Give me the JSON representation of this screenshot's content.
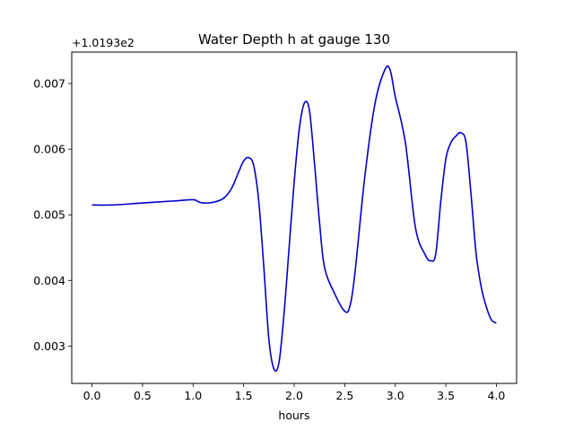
{
  "chart_data": {
    "type": "line",
    "title": "Water Depth h at gauge 130",
    "xlabel": "hours",
    "ylabel": "",
    "offset_label": "+1.0193e2",
    "xlim": [
      -0.2,
      4.2
    ],
    "ylim": [
      0.00243,
      0.00748
    ],
    "x_ticks": [
      0.0,
      0.5,
      1.0,
      1.5,
      2.0,
      2.5,
      3.0,
      3.5,
      4.0
    ],
    "x_tick_labels": [
      "0.0",
      "0.5",
      "1.0",
      "1.5",
      "2.0",
      "2.5",
      "3.0",
      "3.5",
      "4.0"
    ],
    "y_ticks": [
      0.003,
      0.004,
      0.005,
      0.006,
      0.007
    ],
    "y_tick_labels": [
      "0.003",
      "0.004",
      "0.005",
      "0.006",
      "0.007"
    ],
    "grid": false,
    "line_color": "#0000cc",
    "series": [
      {
        "x": [
          0.0,
          0.2,
          0.5,
          0.8,
          1.0,
          1.05,
          1.1,
          1.2,
          1.3,
          1.38,
          1.45,
          1.5,
          1.55,
          1.6,
          1.65,
          1.7,
          1.75,
          1.8,
          1.85,
          1.9,
          1.95,
          2.0,
          2.05,
          2.1,
          2.15,
          2.2,
          2.25,
          2.3,
          2.4,
          2.5,
          2.55,
          2.6,
          2.7,
          2.8,
          2.9,
          2.95,
          3.0,
          3.1,
          3.2,
          3.3,
          3.35,
          3.4,
          3.45,
          3.5,
          3.55,
          3.6,
          3.65,
          3.7,
          3.75,
          3.8,
          3.85,
          3.9,
          3.95,
          4.0
        ],
        "y": [
          0.00515,
          0.00515,
          0.00518,
          0.00521,
          0.00523,
          0.0052,
          0.00518,
          0.00519,
          0.00525,
          0.0054,
          0.00565,
          0.00582,
          0.00587,
          0.00575,
          0.0052,
          0.0042,
          0.0031,
          0.00265,
          0.00275,
          0.0035,
          0.0045,
          0.0055,
          0.0063,
          0.0067,
          0.0066,
          0.0058,
          0.0049,
          0.0042,
          0.0038,
          0.00353,
          0.0036,
          0.0041,
          0.0056,
          0.0067,
          0.00722,
          0.0072,
          0.0068,
          0.0061,
          0.0048,
          0.00438,
          0.0043,
          0.0044,
          0.0052,
          0.00585,
          0.0061,
          0.0062,
          0.00625,
          0.0061,
          0.0053,
          0.0044,
          0.0039,
          0.0036,
          0.0034,
          0.00335
        ]
      }
    ]
  }
}
